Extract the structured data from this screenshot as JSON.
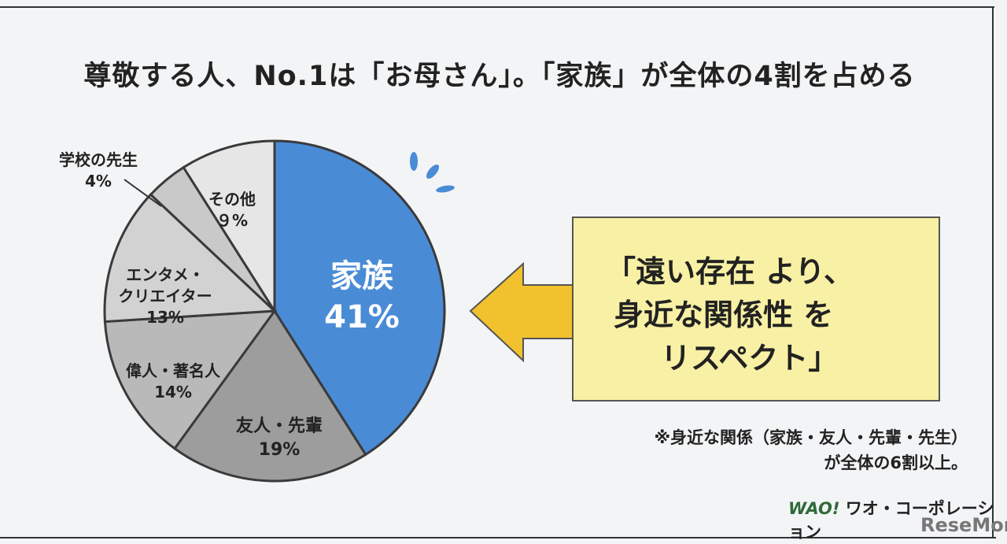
{
  "title": "尊敬する人、No.1は「お母さん」。「家族」が全体の4割を占める",
  "chart_data": {
    "type": "pie",
    "title": "尊敬する人、No.1は「お母さん」。「家族」が全体の4割を占める",
    "direction": "clockwise-from-top",
    "slices": [
      {
        "label": "家族",
        "value": 41,
        "value_label": "41%",
        "color": "#4a8bd6"
      },
      {
        "label": "友人・先輩",
        "value": 19,
        "value_label": "19%",
        "color": "#9d9d9d"
      },
      {
        "label": "偉人・著名人",
        "value": 14,
        "value_label": "14%",
        "color": "#b9b9b9"
      },
      {
        "label": "エンタメ・クリエイター",
        "label_lines": [
          "エンタメ・",
          "クリエイター"
        ],
        "value": 13,
        "value_label": "13%",
        "color": "#d2d2d2"
      },
      {
        "label": "学校の先生",
        "value": 4,
        "value_label": "4%",
        "color": "#c9c9c9"
      },
      {
        "label": "その他",
        "value": 9,
        "value_label": "９%",
        "color": "#e6e6e6"
      }
    ]
  },
  "callout": {
    "lines": [
      "「遠い存在 より、",
      "身近な関係性 を",
      "リスペクト」"
    ],
    "arrow_color": "#f2c12e",
    "box_color": "#f8f0a4"
  },
  "note": {
    "lines": [
      "※身近な関係（家族・友人・先輩・先生）",
      "が全体の6割以上。"
    ]
  },
  "logos": {
    "company": "WAO! ワオ・コーポレーション",
    "company_mark": "WAO!",
    "company_name": "ワオ・コーポレーション",
    "site": "ReseMom"
  }
}
